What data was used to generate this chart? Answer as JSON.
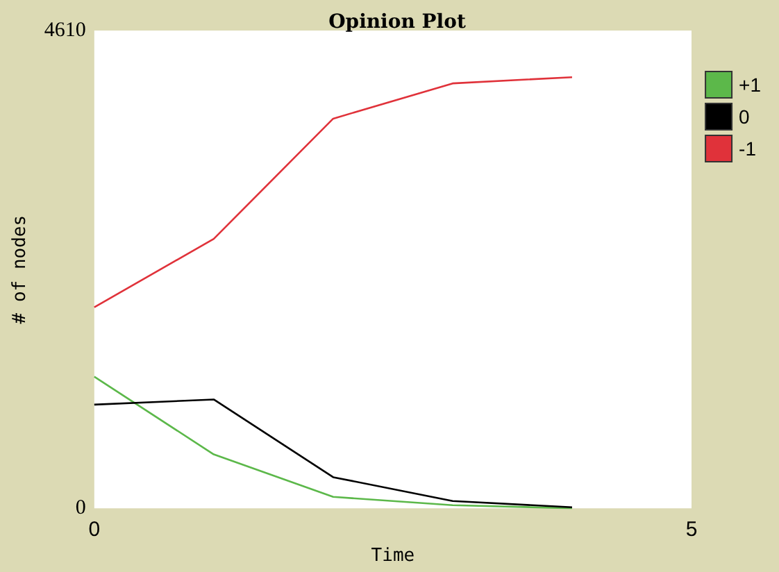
{
  "chart_data": {
    "type": "line",
    "title": "Opinion Plot",
    "xlabel": "Time",
    "ylabel": "# of nodes",
    "x": [
      0,
      1,
      2,
      3,
      4
    ],
    "xlim": [
      0,
      5
    ],
    "xticks": [
      0,
      5
    ],
    "ylim": [
      0,
      4610
    ],
    "yticks": [
      0,
      4610
    ],
    "series": [
      {
        "name": "+1",
        "color": "#5cb84a",
        "values": [
          1270,
          520,
          110,
          30,
          0
        ]
      },
      {
        "name": "0",
        "color": "#000000",
        "values": [
          1000,
          1050,
          300,
          70,
          10
        ]
      },
      {
        "name": "-1",
        "color": "#e0323a",
        "values": [
          1940,
          2600,
          3760,
          4100,
          4160
        ]
      }
    ],
    "legend": "right",
    "grid": false
  }
}
